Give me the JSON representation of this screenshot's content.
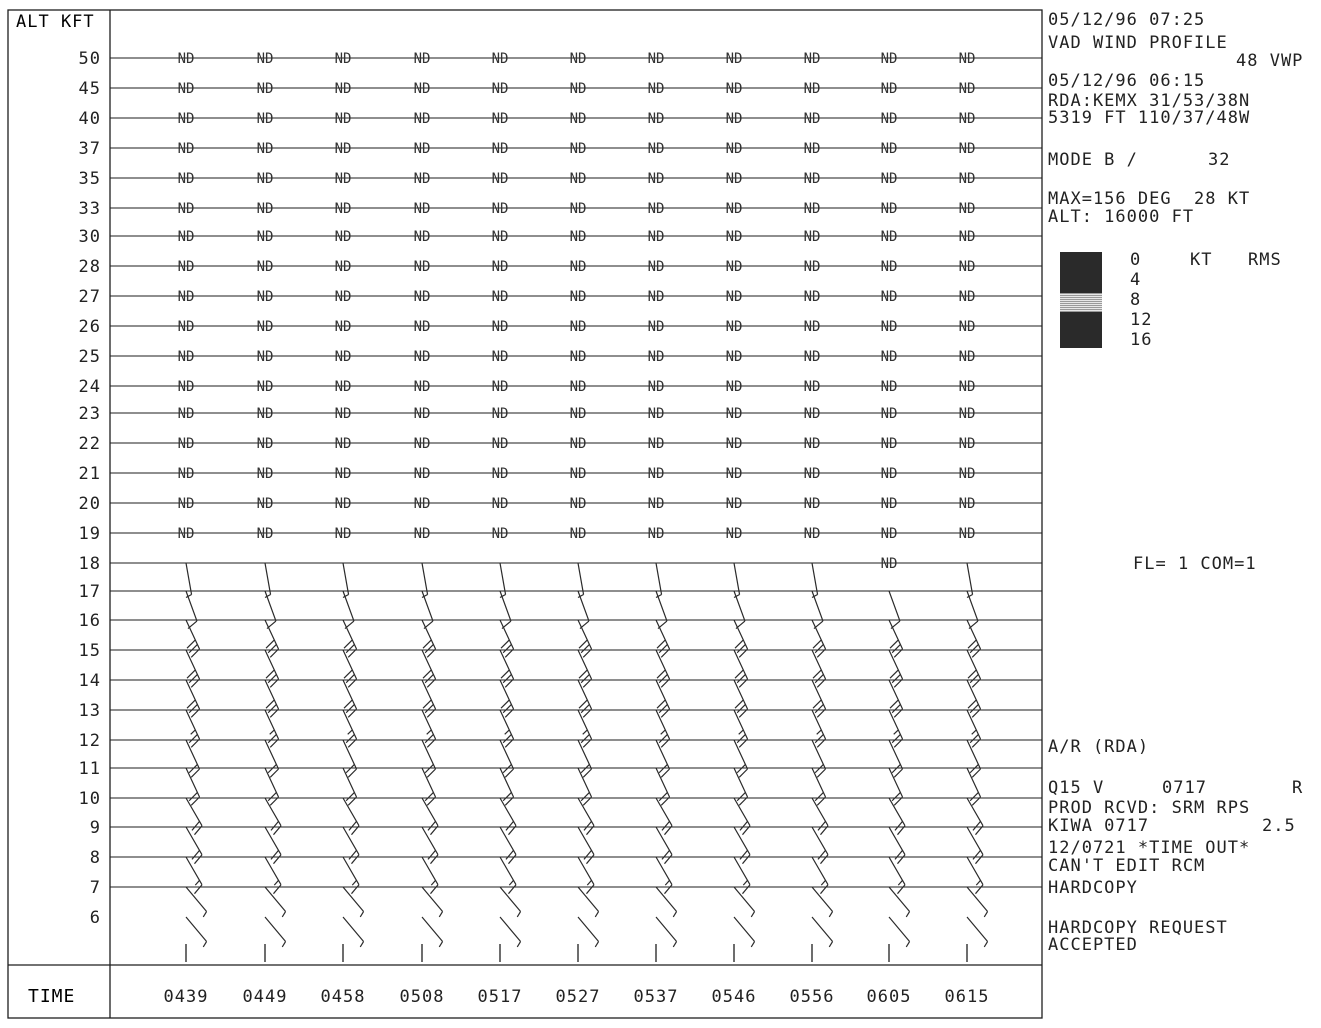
{
  "header": {
    "timestamp": "05/12/96 07:25",
    "product_title": "VAD WIND PROFILE",
    "product_id": "48 VWP",
    "volume_time": "05/12/96 06:15",
    "rda_line": "RDA:KEMX 31/53/38N",
    "site_line": "5319 FT 110/37/48W",
    "mode_label": "MODE B /",
    "mode_value": "32",
    "max_line": "MAX=156 DEG  28 KT",
    "alt_line": "ALT: 16000 FT"
  },
  "legend": {
    "labels": [
      "0",
      "4",
      "8",
      "12",
      "16"
    ],
    "units": "KT",
    "rms": "RMS",
    "colors": [
      "#2a2a2a",
      "#2a2a2a",
      "#bdbdbd",
      "#2a2a2a"
    ]
  },
  "status": {
    "fl_com": "FL= 1 COM=1",
    "ar": "A/R (RDA)",
    "q_label": "Q15 V",
    "q_time": "0717",
    "q_flag": "R",
    "prod_rcvd": "PROD RCVD: SRM RPS",
    "kiwa": "KIWA 0717",
    "kiwa_value": "2.5",
    "timeout": "12/0721 *TIME OUT*",
    "cant_edit": "CAN'T EDIT RCM",
    "hardcopy": "HARDCOPY",
    "hardcopy_req": "HARDCOPY REQUEST",
    "accepted": "ACCEPTED"
  },
  "chart_data": {
    "type": "wind_profile",
    "ylabel": "ALT KFT",
    "xlabel": "TIME",
    "nd_label": "ND",
    "altitudes": [
      50,
      45,
      40,
      37,
      35,
      33,
      30,
      28,
      27,
      26,
      25,
      24,
      23,
      22,
      21,
      20,
      19,
      18,
      17,
      16,
      15,
      14,
      13,
      12,
      11,
      10,
      9,
      8,
      7,
      6
    ],
    "times": [
      "0439",
      "0449",
      "0458",
      "0508",
      "0517",
      "0527",
      "0537",
      "0546",
      "0556",
      "0605",
      "0615"
    ],
    "no_data": [
      {
        "alt_min": 19,
        "alt_max": 50,
        "times": "all"
      },
      {
        "alt": 18,
        "times": [
          "0605"
        ]
      }
    ],
    "wind_barbs": {
      "description_levels_kft": [
        6,
        7,
        8,
        9,
        10,
        11,
        12,
        13,
        14,
        15,
        16,
        17,
        18
      ],
      "speed_kt": {
        "6": 5,
        "7": 5,
        "8": 15,
        "9": 20,
        "10": 20,
        "11": 20,
        "12": 20,
        "13": 25,
        "14": 30,
        "15": 30,
        "16": 30,
        "17": 10,
        "18": 5
      },
      "direction_deg": {
        "6": 140,
        "7": 140,
        "8": 150,
        "9": 150,
        "10": 150,
        "11": 155,
        "12": 155,
        "13": 155,
        "14": 155,
        "15": 155,
        "16": 155,
        "17": 160,
        "18": 170
      }
    }
  }
}
